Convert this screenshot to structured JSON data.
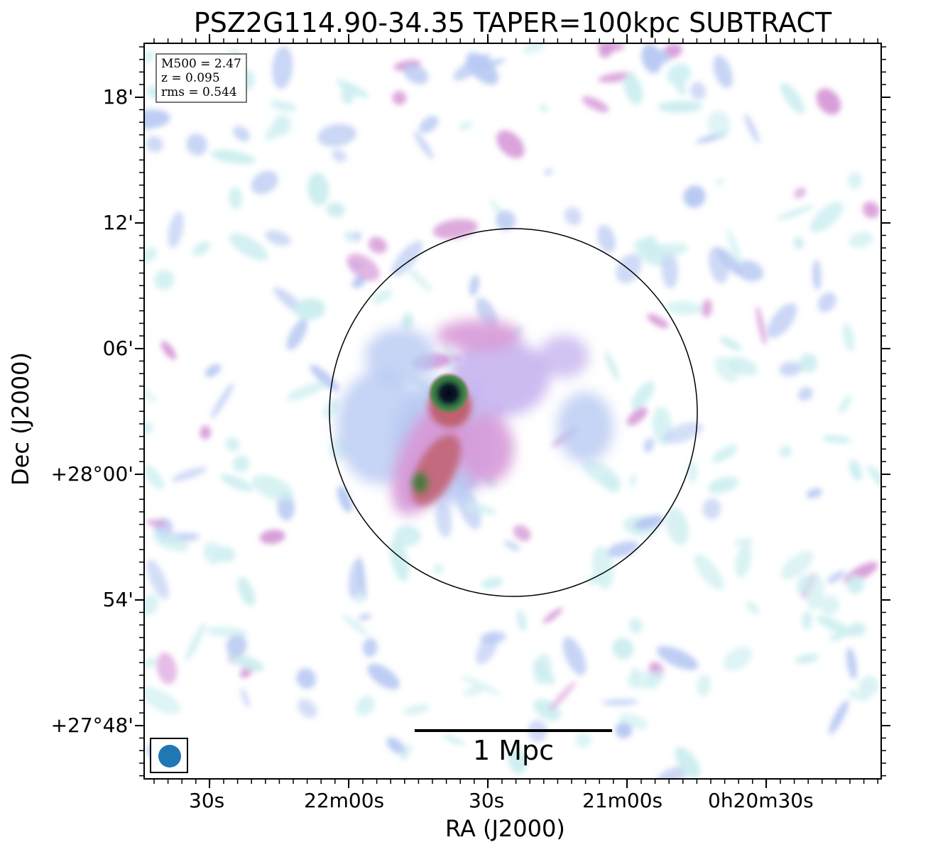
{
  "title": "PSZ2G114.90-34.35 TAPER=100kpc SUBTRACT",
  "info": {
    "m500": "M500 = 2.47",
    "z": "z = 0.095",
    "rms": "rms = 0.544"
  },
  "scalebar_label": "1 Mpc",
  "axes": {
    "xlabel": "RA (J2000)",
    "ylabel": "Dec (J2000)",
    "xticks": [
      "30s",
      "22m00s",
      "30s",
      "21m00s",
      "0h20m30s"
    ],
    "yticks": [
      "18'",
      "12'",
      "06'",
      "+28°00'",
      "54'",
      "+27°48'"
    ]
  },
  "colors": {
    "colormap": [
      "#ffffff",
      "#cdeef0",
      "#b8c9f2",
      "#d79ad8",
      "#c06070",
      "#3f7a3c",
      "#0a1a2a"
    ],
    "beam": "#1f77b4",
    "circle": "#000000"
  }
}
